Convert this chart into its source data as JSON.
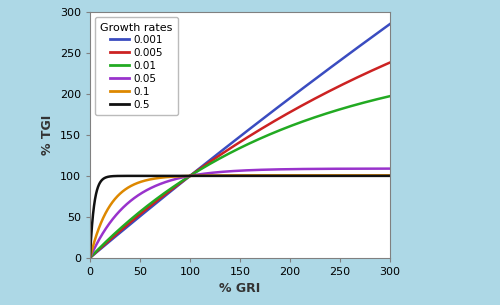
{
  "growth_rates": [
    0.001,
    0.005,
    0.01,
    0.05,
    0.1,
    0.5
  ],
  "colors": [
    "#3a4cc0",
    "#cc2222",
    "#22aa22",
    "#9933cc",
    "#dd8800",
    "#111111"
  ],
  "labels": [
    "0.001",
    "0.005",
    "0.01",
    "0.05",
    "0.1",
    "0.5"
  ],
  "xlim": [
    0,
    300
  ],
  "ylim": [
    0,
    300
  ],
  "xticks": [
    0,
    50,
    100,
    150,
    200,
    250,
    300
  ],
  "yticks": [
    0,
    50,
    100,
    150,
    200,
    250,
    300
  ],
  "xlabel": "% GRI",
  "ylabel": "% TGI",
  "legend_title": "Growth rates",
  "background_color": "#add8e6",
  "plot_bg_color": "#ffffff",
  "T": 50
}
